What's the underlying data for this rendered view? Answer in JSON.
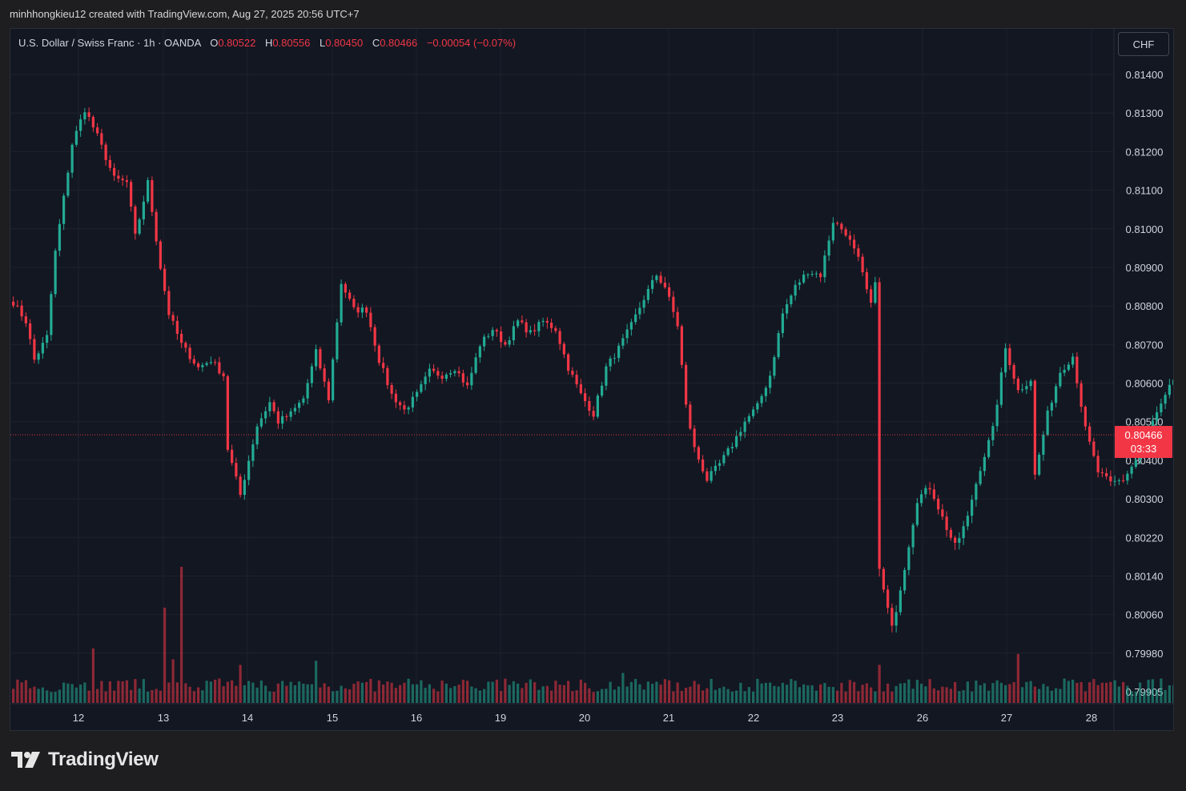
{
  "header": {
    "attribution": "minhhongkieu12 created with TradingView.com, Aug 27, 2025 20:56 UTC+7"
  },
  "legend": {
    "symbol": "U.S. Dollar / Swiss Franc · 1h · OANDA",
    "open_label": "O",
    "open": "0.80522",
    "high_label": "H",
    "high": "0.80556",
    "low_label": "L",
    "low": "0.80450",
    "close_label": "C",
    "close": "0.80466",
    "change": "−0.00054 (−0.07%)"
  },
  "currency_button": "CHF",
  "last_price": {
    "value": "0.80466",
    "countdown": "03:33"
  },
  "brand": {
    "name": "TradingView"
  },
  "colors": {
    "up": "#22ab94",
    "down": "#f23645",
    "background": "#131722",
    "grid": "#1e222d",
    "text": "#d1d4dc"
  },
  "chart_data": {
    "type": "candlestick",
    "y_axis_ticks": [
      "0.81400",
      "0.81300",
      "0.81200",
      "0.81100",
      "0.81000",
      "0.80900",
      "0.80800",
      "0.80700",
      "0.80600",
      "0.80500",
      "0.80400",
      "0.80300",
      "0.80220",
      "0.80140",
      "0.80060",
      "0.79980",
      "0.79905"
    ],
    "x_axis_ticks": [
      "12",
      "13",
      "14",
      "15",
      "16",
      "19",
      "20",
      "21",
      "22",
      "23",
      "26",
      "27",
      "28"
    ],
    "close_path": [
      [
        0,
        0.8081
      ],
      [
        3,
        0.8076
      ],
      [
        5,
        0.8066
      ],
      [
        8,
        0.8072
      ],
      [
        10,
        0.8094
      ],
      [
        14,
        0.8122
      ],
      [
        17,
        0.8131
      ],
      [
        20,
        0.8124
      ],
      [
        24,
        0.8113
      ],
      [
        27,
        0.8112
      ],
      [
        29,
        0.8098
      ],
      [
        32,
        0.8112
      ],
      [
        35,
        0.809
      ],
      [
        37,
        0.8078
      ],
      [
        40,
        0.807
      ],
      [
        44,
        0.8064
      ],
      [
        47,
        0.8066
      ],
      [
        50,
        0.8062
      ],
      [
        51,
        0.8043
      ],
      [
        54,
        0.8031
      ],
      [
        58,
        0.8049
      ],
      [
        61,
        0.8055
      ],
      [
        63,
        0.805
      ],
      [
        66,
        0.8052
      ],
      [
        69,
        0.8056
      ],
      [
        72,
        0.8068
      ],
      [
        75,
        0.8056
      ],
      [
        78,
        0.8086
      ],
      [
        81,
        0.8079
      ],
      [
        84,
        0.8079
      ],
      [
        87,
        0.8066
      ],
      [
        90,
        0.8057
      ],
      [
        93,
        0.8053
      ],
      [
        96,
        0.8057
      ],
      [
        99,
        0.8063
      ],
      [
        102,
        0.8062
      ],
      [
        105,
        0.8064
      ],
      [
        108,
        0.8059
      ],
      [
        111,
        0.807
      ],
      [
        114,
        0.8074
      ],
      [
        117,
        0.807
      ],
      [
        120,
        0.8076
      ],
      [
        123,
        0.8073
      ],
      [
        126,
        0.8076
      ],
      [
        129,
        0.8074
      ],
      [
        132,
        0.8064
      ],
      [
        135,
        0.8057
      ],
      [
        138,
        0.8052
      ],
      [
        141,
        0.8064
      ],
      [
        144,
        0.8069
      ],
      [
        147,
        0.8075
      ],
      [
        150,
        0.8082
      ],
      [
        153,
        0.8088
      ],
      [
        155,
        0.8085
      ],
      [
        158,
        0.8075
      ],
      [
        160,
        0.8054
      ],
      [
        162,
        0.8043
      ],
      [
        165,
        0.8035
      ],
      [
        168,
        0.8039
      ],
      [
        171,
        0.8044
      ],
      [
        174,
        0.805
      ],
      [
        177,
        0.8054
      ],
      [
        180,
        0.8062
      ],
      [
        183,
        0.8078
      ],
      [
        186,
        0.8085
      ],
      [
        189,
        0.8089
      ],
      [
        192,
        0.8088
      ],
      [
        195,
        0.8102
      ],
      [
        198,
        0.8099
      ],
      [
        201,
        0.8092
      ],
      [
        204,
        0.808
      ],
      [
        205,
        0.8087
      ],
      [
        206,
        0.8015
      ],
      [
        209,
        0.8003
      ],
      [
        212,
        0.8016
      ],
      [
        215,
        0.803
      ],
      [
        218,
        0.8033
      ],
      [
        221,
        0.8026
      ],
      [
        224,
        0.802
      ],
      [
        227,
        0.8026
      ],
      [
        230,
        0.8038
      ],
      [
        233,
        0.8048
      ],
      [
        236,
        0.8069
      ],
      [
        239,
        0.8058
      ],
      [
        242,
        0.8061
      ],
      [
        243,
        0.8036
      ],
      [
        246,
        0.8052
      ],
      [
        249,
        0.8063
      ],
      [
        252,
        0.8067
      ],
      [
        255,
        0.8048
      ],
      [
        258,
        0.8037
      ],
      [
        261,
        0.8034
      ],
      [
        264,
        0.8035
      ],
      [
        267,
        0.804
      ],
      [
        270,
        0.8048
      ],
      [
        273,
        0.8054
      ],
      [
        276,
        0.8061
      ],
      [
        279,
        0.8071
      ],
      [
        282,
        0.8068
      ],
      [
        285,
        0.805
      ],
      [
        286,
        0.80466
      ]
    ],
    "volume_spikes": [
      [
        36,
        0.7
      ],
      [
        40,
        1.0
      ],
      [
        19,
        0.4
      ],
      [
        38,
        0.32
      ],
      [
        54,
        0.28
      ],
      [
        72,
        0.31
      ],
      [
        145,
        0.22
      ],
      [
        206,
        0.28
      ],
      [
        239,
        0.36
      ]
    ],
    "last_price": 0.80466,
    "timezone": "UTC+7"
  }
}
